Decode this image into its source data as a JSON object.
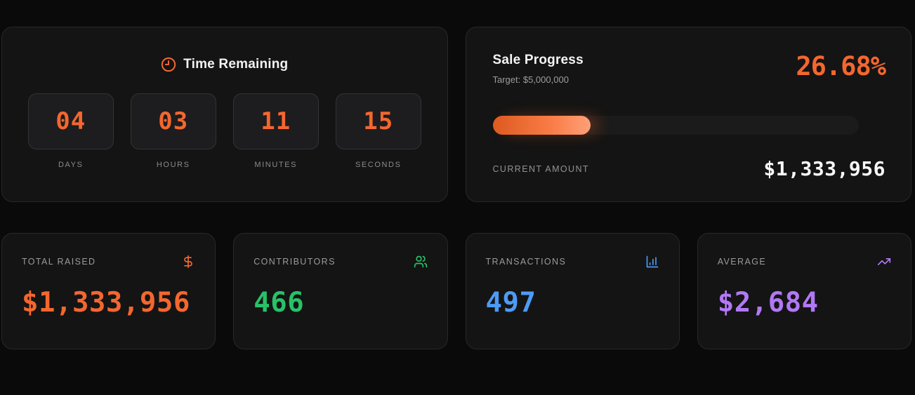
{
  "colors": {
    "orange": "#f4672e",
    "green": "#27c268",
    "blue": "#4d9bf5",
    "purple": "#b278f5",
    "progress_gradient_start": "#dd5a20",
    "progress_gradient_end": "#ffa078"
  },
  "countdown": {
    "title": "Time Remaining",
    "icon": "clock-icon",
    "units": [
      {
        "value": "04",
        "label": "DAYS"
      },
      {
        "value": "03",
        "label": "HOURS"
      },
      {
        "value": "11",
        "label": "MINUTES"
      },
      {
        "value": "15",
        "label": "SECONDS"
      }
    ]
  },
  "sale_progress": {
    "title": "Sale Progress",
    "target_label": "Target: $5,000,000",
    "percent": "26.68%",
    "percent_value": 26.68,
    "current_amount_label": "CURRENT AMOUNT",
    "current_amount": "$1,333,956"
  },
  "stats": [
    {
      "label": "TOTAL RAISED",
      "value": "$1,333,956",
      "icon": "dollar-sign-icon",
      "color": "#f4672e"
    },
    {
      "label": "CONTRIBUTORS",
      "value": "466",
      "icon": "users-icon",
      "color": "#27c268"
    },
    {
      "label": "TRANSACTIONS",
      "value": "497",
      "icon": "bar-chart-icon",
      "color": "#4d9bf5"
    },
    {
      "label": "AVERAGE",
      "value": "$2,684",
      "icon": "trending-up-icon",
      "color": "#b278f5"
    }
  ]
}
